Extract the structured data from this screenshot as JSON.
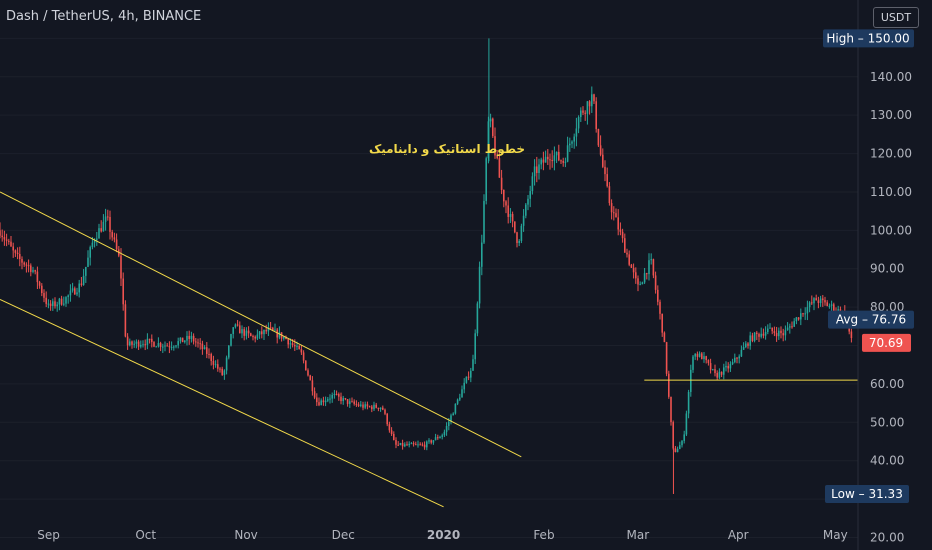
{
  "header": {
    "title": "Dash / TetherUS, 4h, BINANCE",
    "currency": "USDT"
  },
  "annotation": "خطوط استاتیک و داینامیک",
  "price_labels": {
    "high": {
      "label": "High",
      "value": "150.00"
    },
    "avg": {
      "label": "Avg",
      "value": "76.76"
    },
    "current": {
      "value": "70.69"
    },
    "low": {
      "label": "Low",
      "value": "31.33"
    }
  },
  "colors": {
    "background": "#131722",
    "up": "#26a69a",
    "down": "#ef5350",
    "trendline": "#f2d94a",
    "label_bg": "#1e3a5f",
    "axis_text": "#b2b5be"
  },
  "chart_data": {
    "type": "candlestick",
    "title": "Dash / TetherUS, 4h, BINANCE",
    "ylim": [
      17,
      160
    ],
    "y_ticks": [
      20,
      30,
      40,
      50,
      60,
      70,
      80,
      90,
      100,
      110,
      120,
      130,
      140,
      150
    ],
    "y_tick_labels": [
      "20.00",
      "30.00",
      "40.00",
      "50.00",
      "60.00",
      "70.00",
      "80.00",
      "90.00",
      "100.00",
      "110.00",
      "120.00",
      "130.00",
      "140.00",
      "150.00"
    ],
    "x_tick_labels": [
      "Sep",
      "Oct",
      "Nov",
      "Dec",
      "2020",
      "Feb",
      "Mar",
      "Apr",
      "May"
    ],
    "price_path": [
      [
        "2019-08-17",
        100
      ],
      [
        "2019-08-22",
        93
      ],
      [
        "2019-08-27",
        90
      ],
      [
        "2019-09-01",
        80
      ],
      [
        "2019-09-06",
        82
      ],
      [
        "2019-09-11",
        86
      ],
      [
        "2019-09-15",
        98
      ],
      [
        "2019-09-19",
        103
      ],
      [
        "2019-09-23",
        92
      ],
      [
        "2019-09-25",
        70
      ],
      [
        "2019-10-01",
        71
      ],
      [
        "2019-10-08",
        70
      ],
      [
        "2019-10-15",
        72
      ],
      [
        "2019-10-20",
        68
      ],
      [
        "2019-10-25",
        62
      ],
      [
        "2019-10-28",
        75
      ],
      [
        "2019-11-03",
        72
      ],
      [
        "2019-11-08",
        74
      ],
      [
        "2019-11-13",
        72
      ],
      [
        "2019-11-18",
        68
      ],
      [
        "2019-11-23",
        55
      ],
      [
        "2019-11-28",
        57
      ],
      [
        "2019-12-03",
        55
      ],
      [
        "2019-12-08",
        54
      ],
      [
        "2019-12-13",
        54
      ],
      [
        "2019-12-17",
        44
      ],
      [
        "2019-12-22",
        44
      ],
      [
        "2019-12-26",
        44
      ],
      [
        "2020-01-01",
        47
      ],
      [
        "2020-01-06",
        57
      ],
      [
        "2020-01-10",
        65
      ],
      [
        "2020-01-13",
        100
      ],
      [
        "2020-01-15",
        130
      ],
      [
        "2020-01-19",
        110
      ],
      [
        "2020-01-24",
        97
      ],
      [
        "2020-01-29",
        115
      ],
      [
        "2020-02-03",
        120
      ],
      [
        "2020-02-07",
        118
      ],
      [
        "2020-02-12",
        130
      ],
      [
        "2020-02-16",
        135
      ],
      [
        "2020-02-18",
        122
      ],
      [
        "2020-02-21",
        108
      ],
      [
        "2020-02-25",
        98
      ],
      [
        "2020-03-01",
        85
      ],
      [
        "2020-03-05",
        92
      ],
      [
        "2020-03-09",
        72
      ],
      [
        "2020-03-12",
        42
      ],
      [
        "2020-03-15",
        45
      ],
      [
        "2020-03-18",
        68
      ],
      [
        "2020-03-21",
        67
      ],
      [
        "2020-03-25",
        62
      ],
      [
        "2020-03-30",
        65
      ],
      [
        "2020-04-05",
        72
      ],
      [
        "2020-04-10",
        74
      ],
      [
        "2020-04-15",
        73
      ],
      [
        "2020-04-20",
        78
      ],
      [
        "2020-04-25",
        82
      ],
      [
        "2020-04-30",
        80
      ],
      [
        "2020-05-04",
        78
      ],
      [
        "2020-05-06",
        71
      ]
    ],
    "trendlines": [
      {
        "name": "channel-upper",
        "from": [
          "2019-08-17",
          110
        ],
        "to": [
          "2020-01-25",
          41
        ]
      },
      {
        "name": "channel-lower",
        "from": [
          "2019-08-17",
          82
        ],
        "to": [
          "2020-01-01",
          28
        ]
      },
      {
        "name": "horizontal-support",
        "from": [
          "2020-03-03",
          61
        ],
        "to": [
          "2020-05-08",
          61
        ]
      }
    ]
  }
}
